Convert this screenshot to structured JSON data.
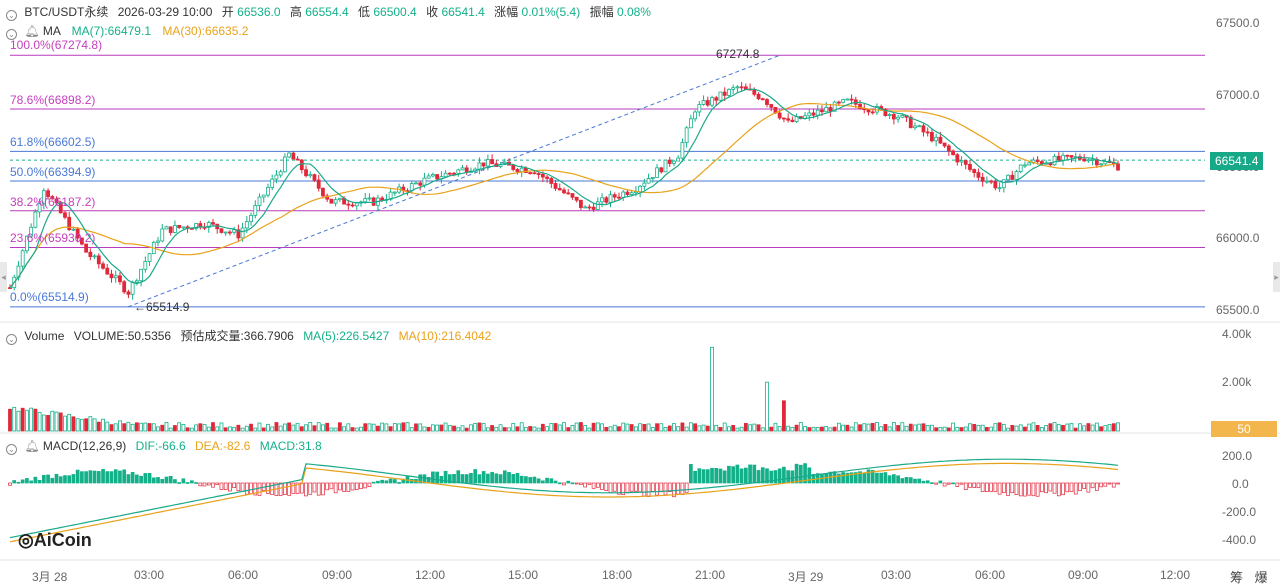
{
  "header": {
    "symbol": "BTC/USDT永续",
    "datetime": "2026-03-29 10:00",
    "open_label": "开",
    "open": "66536.0",
    "high_label": "高",
    "high": "66554.4",
    "low_label": "低",
    "low": "66500.4",
    "close_label": "收",
    "close": "66541.4",
    "change_label": "涨幅",
    "change": "0.01%(5.4)",
    "amp_label": "振幅",
    "amp": "0.08%"
  },
  "ma": {
    "label": "MA",
    "ma7": "MA(7):66479.1",
    "ma30": "MA(30):66635.2"
  },
  "fib": [
    "100.0%(67274.8)",
    "78.6%(66898.2)",
    "61.8%(66602.5)",
    "50.0%(66394.9)",
    "38.2%(66187.2)",
    "23.6%(65930.2)",
    "0.0%(65514.9)"
  ],
  "fib_values": [
    67274.8,
    66898.2,
    66602.5,
    66394.9,
    66187.2,
    65930.2,
    65514.9
  ],
  "annotations": {
    "high": "67274.8",
    "low": "←65514.9"
  },
  "price_axis": [
    "67500.0",
    "67000.0",
    "66500.0",
    "66000.0",
    "65500.0"
  ],
  "current_price": "66541.4",
  "volume": {
    "label": "Volume",
    "volume": "VOLUME:50.5356",
    "est": "预估成交量:366.7906",
    "ma5": "MA(5):226.5427",
    "ma10": "MA(10):216.4042",
    "axis": [
      "4.00k",
      "2.00k"
    ],
    "current": "50"
  },
  "macd": {
    "label": "MACD(12,26,9)",
    "dif": "DIF:-66.6",
    "dea": "DEA:-82.6",
    "macd": "MACD:31.8",
    "axis": [
      "200.0",
      "0.0",
      "-200.0",
      "-400.0"
    ]
  },
  "time_axis": [
    "3月 28",
    "03:00",
    "06:00",
    "09:00",
    "12:00",
    "15:00",
    "18:00",
    "21:00",
    "3月 29",
    "03:00",
    "06:00",
    "09:00",
    "12:00"
  ],
  "bottom_right": [
    "筹",
    "爆"
  ],
  "logo": "AiCoin",
  "colors": {
    "up": "#14b08a",
    "down": "#e0283a",
    "ma7": "#1aa98a",
    "ma30": "#e9a21a",
    "fib": "#b83bbd"
  }
}
